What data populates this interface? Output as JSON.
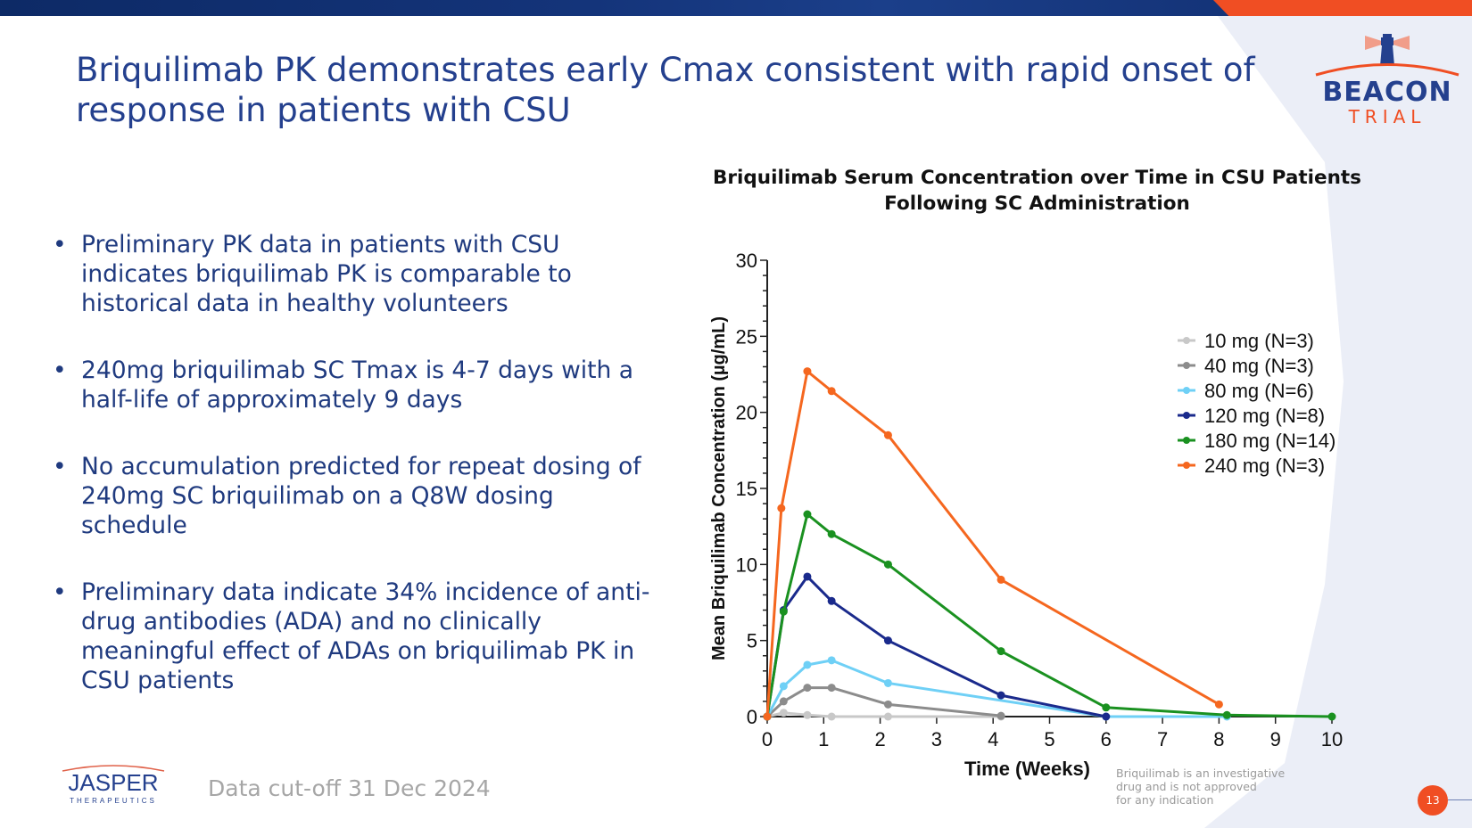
{
  "slide": {
    "title": "Briquilimab PK demonstrates early Cmax consistent with rapid onset of response in patients with CSU",
    "logo": {
      "name": "BEACON",
      "sub": "TRIAL"
    },
    "bullets": [
      "Preliminary PK data in patients with CSU indicates briquilimab PK is comparable to historical data in healthy volunteers",
      "240mg briquilimab SC Tmax is 4-7 days with a half-life of approximately 9 days",
      "No accumulation predicted for repeat dosing of 240mg SC briquilimab on a Q8W dosing schedule",
      "Preliminary data indicate 34% incidence of anti-drug antibodies (ADA) and no clinically meaningful effect of ADAs on briquilimab PK in CSU patients"
    ],
    "bullet_symbol": "•",
    "footer": {
      "company_logo": "JASPER",
      "company_sub": "THERAPEUTICS",
      "cutoff": "Data cut-off 31 Dec 2024",
      "disclaimer": [
        "Briquilimab is an investigative",
        "drug and is not approved",
        "for any indication"
      ],
      "page_number": "13"
    },
    "colors": {
      "brand_blue": "#24408e",
      "brand_orange": "#f04e23"
    }
  },
  "chart_data": {
    "type": "line",
    "title": "Briquilimab Serum Concentration over Time in CSU Patients",
    "subtitle": "Following SC Administration",
    "xlabel": "Time (Weeks)",
    "ylabel": "Mean Briquilimab Concentration (µg/mL)",
    "xlim": [
      0,
      10
    ],
    "ylim": [
      0,
      30
    ],
    "xticks": [
      0,
      1,
      2,
      3,
      4,
      5,
      6,
      7,
      8,
      9,
      10
    ],
    "yticks": [
      0,
      5,
      10,
      15,
      20,
      25,
      30
    ],
    "grid": false,
    "legend_position": "top-right",
    "series": [
      {
        "name": "10 mg (N=3)",
        "color": "#c8c8c8",
        "x": [
          0,
          0.29,
          0.71,
          1.14,
          2.14,
          4.14
        ],
        "y": [
          0,
          0.25,
          0.1,
          0,
          0,
          0
        ]
      },
      {
        "name": "40 mg (N=3)",
        "color": "#8c8c8c",
        "x": [
          0,
          0.29,
          0.71,
          1.14,
          2.14,
          4.14
        ],
        "y": [
          0,
          1.0,
          1.9,
          1.9,
          0.8,
          0.05
        ]
      },
      {
        "name": "80 mg (N=6)",
        "color": "#6fd0f6",
        "x": [
          0,
          0.29,
          0.71,
          1.14,
          2.14,
          6.0,
          8.14
        ],
        "y": [
          0,
          2.0,
          3.4,
          3.7,
          2.2,
          0,
          0
        ]
      },
      {
        "name": "120 mg (N=8)",
        "color": "#1a2a8c",
        "x": [
          0,
          0.29,
          0.71,
          1.14,
          2.14,
          4.14,
          6.0
        ],
        "y": [
          0,
          7.0,
          9.2,
          7.6,
          5.0,
          1.4,
          0
        ]
      },
      {
        "name": "180 mg (N=14)",
        "color": "#1a9120",
        "x": [
          0,
          0.29,
          0.71,
          1.14,
          2.14,
          4.14,
          6.0,
          8.14,
          10
        ],
        "y": [
          0,
          6.9,
          13.3,
          12.0,
          10.0,
          4.3,
          0.6,
          0.1,
          0
        ]
      },
      {
        "name": "240 mg (N=3)",
        "color": "#f5671f",
        "x": [
          0,
          0.25,
          0.71,
          1.14,
          2.14,
          4.14,
          8.0
        ],
        "y": [
          0,
          13.7,
          22.7,
          21.4,
          18.5,
          9.0,
          0.8
        ]
      }
    ]
  }
}
